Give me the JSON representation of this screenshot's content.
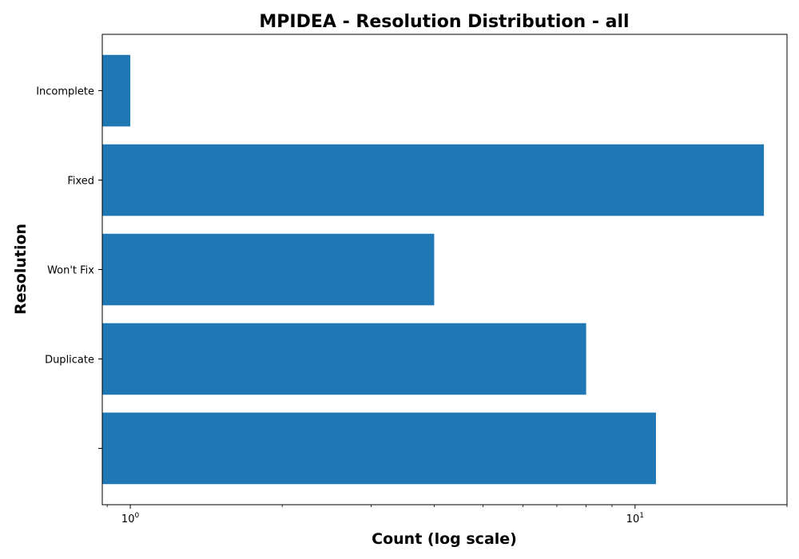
{
  "chart_data": {
    "type": "bar",
    "orientation": "horizontal",
    "title": "MPIDEA - Resolution Distribution - all",
    "xlabel": "Count (log scale)",
    "ylabel": "Resolution",
    "x_scale": "log",
    "xlim": [
      0.88,
      20
    ],
    "x_ticks": [
      {
        "value": 1,
        "base": "10",
        "exp": "0"
      },
      {
        "value": 10,
        "base": "10",
        "exp": "1"
      }
    ],
    "categories": [
      "",
      "Duplicate",
      "Won't Fix",
      "Fixed",
      "Incomplete"
    ],
    "values": [
      11,
      8,
      4,
      18,
      1
    ],
    "bar_color": "#1f77b4",
    "grid": false,
    "legend": "none"
  }
}
